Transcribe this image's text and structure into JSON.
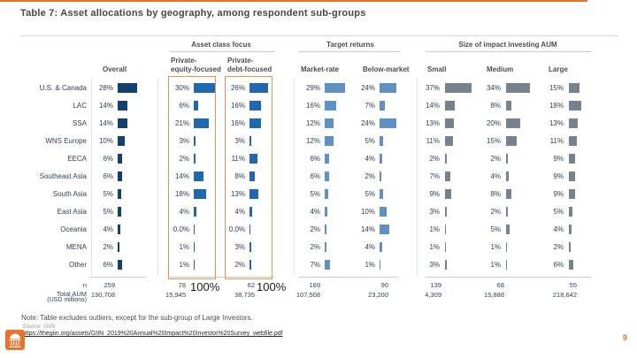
{
  "chart_data": {
    "type": "table",
    "title": "Table 7: Asset allocations by geography, among respondent sub-groups",
    "column_groups": [
      "Asset class focus",
      "Target returns",
      "Size of impact investing AUM"
    ],
    "categories": [
      "U.S. & Canada",
      "LAC",
      "SSA",
      "WNS Europe",
      "EECA",
      "Southeast Asia",
      "South Asia",
      "East Asia",
      "Oceania",
      "MENA",
      "Other"
    ],
    "series": [
      {
        "name": "Overall",
        "group": null,
        "values_pct": [
          28,
          14,
          14,
          10,
          6,
          6,
          5,
          5,
          4,
          2,
          6
        ],
        "n": "259",
        "total_aum_usd_millions": "130,708"
      },
      {
        "name": "Private-equity-focused",
        "header_lines": [
          "Private-",
          "equity-focused"
        ],
        "group": "Asset class focus",
        "values_pct": [
          30,
          6,
          21,
          3,
          2,
          14,
          18,
          4,
          0,
          1,
          1
        ],
        "n": "78",
        "total_aum_usd_millions": "15,945"
      },
      {
        "name": "Private-debt-focused",
        "header_lines": [
          "Private-",
          "debt-focused"
        ],
        "group": "Asset class focus",
        "values_pct": [
          26,
          16,
          16,
          3,
          11,
          8,
          13,
          4,
          0,
          3,
          2
        ],
        "n": "62",
        "total_aum_usd_millions": "38,735"
      },
      {
        "name": "Market-rate",
        "group": "Target returns",
        "values_pct": [
          29,
          16,
          12,
          12,
          6,
          6,
          5,
          4,
          2,
          2,
          7
        ],
        "n": "169",
        "total_aum_usd_millions": "107,508"
      },
      {
        "name": "Below-market",
        "group": "Target returns",
        "values_pct": [
          24,
          7,
          24,
          5,
          4,
          2,
          5,
          10,
          14,
          4,
          1
        ],
        "n": "90",
        "total_aum_usd_millions": "23,200"
      },
      {
        "name": "Small",
        "group": "Size of impact investing AUM",
        "values_pct": [
          37,
          14,
          13,
          11,
          2,
          7,
          9,
          3,
          1,
          1,
          3
        ],
        "n": "139",
        "total_aum_usd_millions": "4,309"
      },
      {
        "name": "Medium",
        "group": "Size of impact investing AUM",
        "values_pct": [
          34,
          8,
          20,
          15,
          2,
          4,
          8,
          2,
          5,
          1,
          1
        ],
        "n": "68",
        "total_aum_usd_millions": "15,888"
      },
      {
        "name": "Large",
        "group": "Size of impact investing AUM",
        "values_pct": [
          15,
          18,
          13,
          11,
          9,
          9,
          9,
          5,
          4,
          2,
          6
        ],
        "n": "55",
        "total_aum_usd_millions": "218,642"
      }
    ],
    "footer_rows": {
      "n_label": "n",
      "total_aum_label": "Total AUM",
      "total_aum_label_sub": "(USD millions)"
    },
    "zero_display": "0.0%"
  },
  "annotations": {
    "equity_total": "100%",
    "debt_total": "100%"
  },
  "footer": {
    "note": "Note: Table excludes outliers, except for the sub-group of Large Investors.",
    "source": "Source: GIIN",
    "link": "https://thegiin.org/assets/GIIN_2019%20Annual%20Impact%20Investor%20Survey_webfile.pdf",
    "page_number": "9"
  },
  "colors": {
    "overall_bar": "#12406f",
    "asset_class_bar": "#1d68ae",
    "target_returns_bar": "#5e90c6",
    "aum_bar": "#76828d",
    "highlight_box": "#e29350",
    "accent_orange": "#e8702e"
  },
  "icons": {
    "logo": "rotunda-dome-icon"
  }
}
